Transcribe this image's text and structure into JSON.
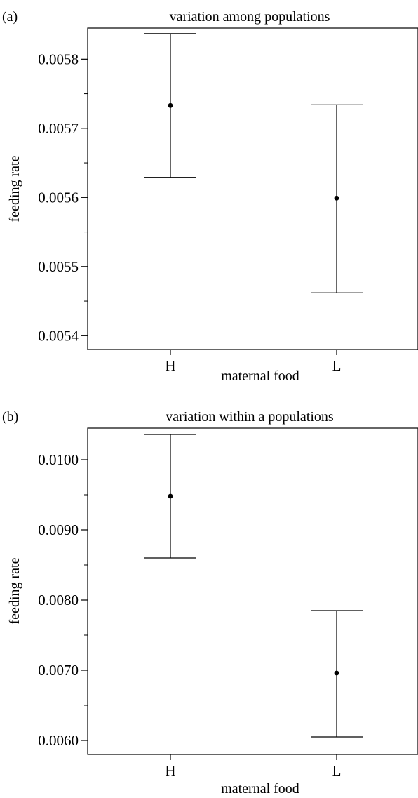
{
  "chart_data": [
    {
      "type": "errorbar",
      "panel_label": "(a)",
      "title": "variation among populations",
      "xlabel": "maternal food",
      "ylabel": "feeding rate",
      "categories": [
        "H",
        "L"
      ],
      "values": [
        0.005733,
        0.005599
      ],
      "lower": [
        0.005629,
        0.005462
      ],
      "upper": [
        0.005837,
        0.005734
      ],
      "ylim": [
        0.00538,
        0.005845
      ],
      "yticks": [
        "0.0054",
        "0.0055",
        "0.0056",
        "0.0057",
        "0.0058"
      ],
      "ytick_values": [
        0.0054,
        0.0055,
        0.0056,
        0.0057,
        0.0058
      ],
      "grid": false
    },
    {
      "type": "errorbar",
      "panel_label": "(b)",
      "title": "variation within a populations",
      "xlabel": "maternal food",
      "ylabel": "feeding rate",
      "categories": [
        "H",
        "L"
      ],
      "values": [
        0.00948,
        0.00696
      ],
      "lower": [
        0.0086,
        0.00605
      ],
      "upper": [
        0.01036,
        0.00785
      ],
      "ylim": [
        0.0058,
        0.01045
      ],
      "yticks": [
        "0.0060",
        "0.0070",
        "0.0080",
        "0.0090",
        "0.0100"
      ],
      "ytick_values": [
        0.006,
        0.007,
        0.008,
        0.009,
        0.01
      ],
      "grid": false
    }
  ]
}
